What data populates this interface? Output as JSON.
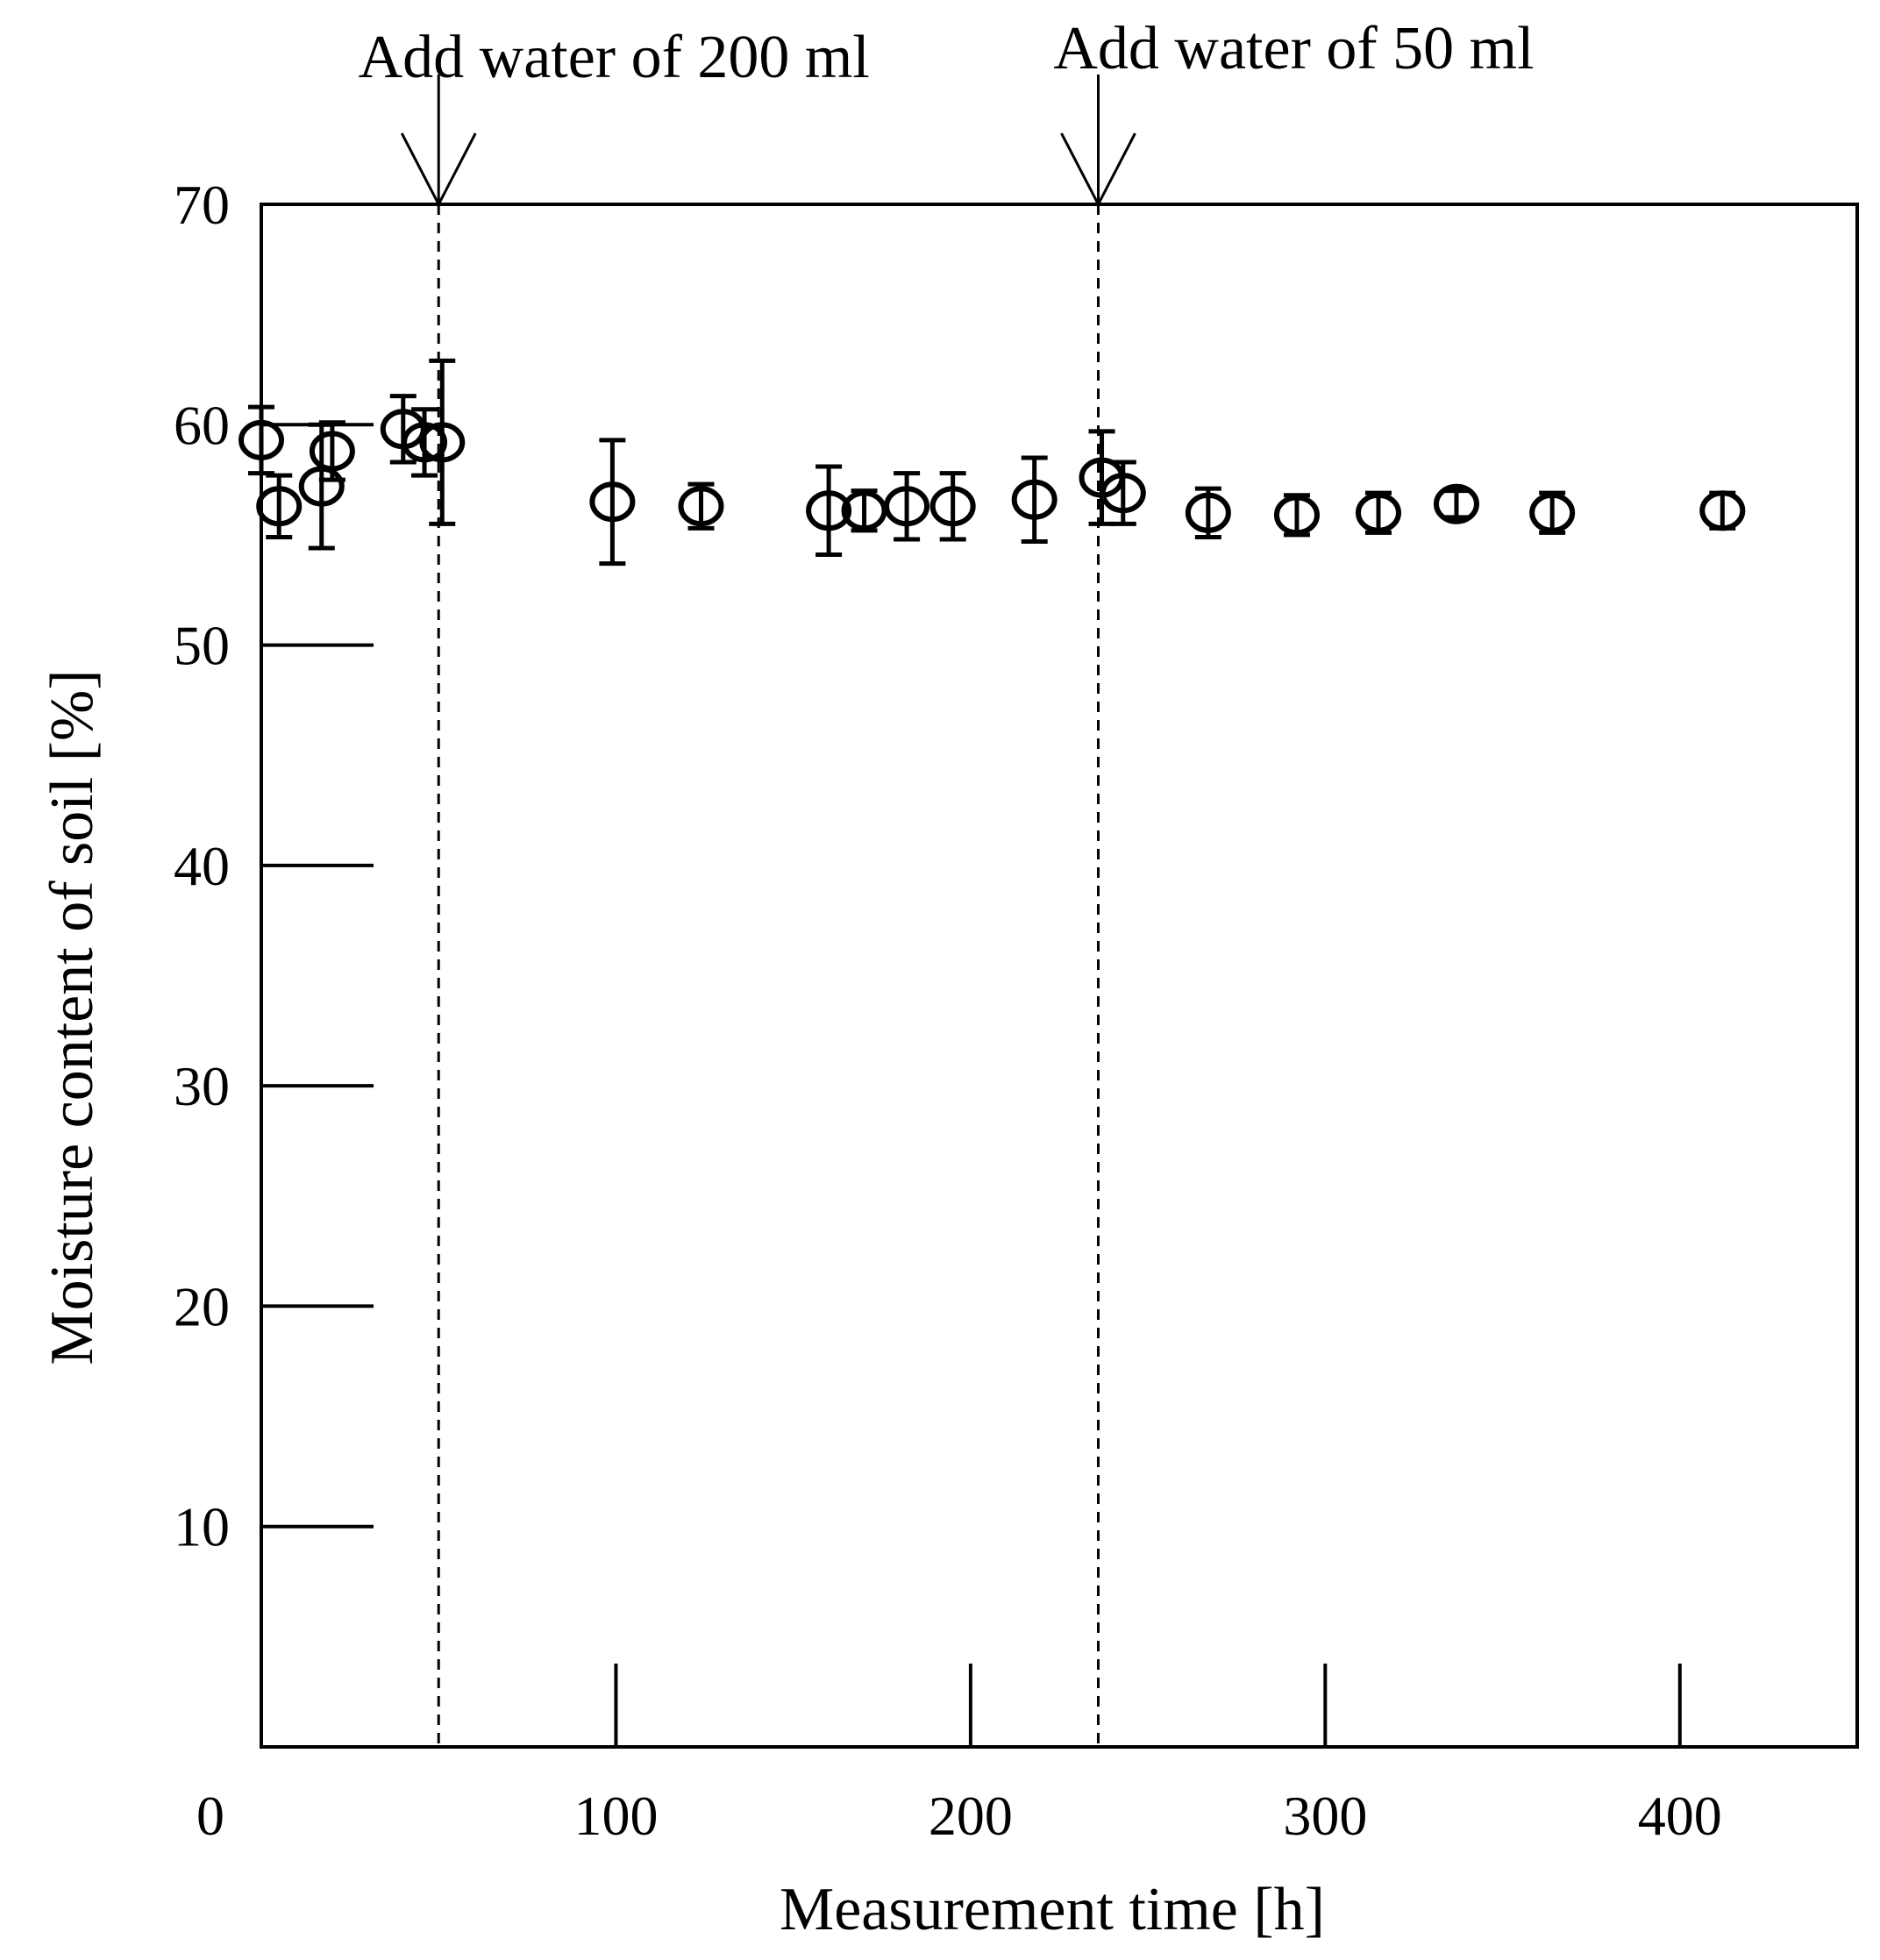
{
  "chart_data": {
    "type": "scatter",
    "title": "",
    "xlabel": "Measurement time [h]",
    "ylabel": "Moisture content of soil [%]",
    "xlim": [
      0,
      450
    ],
    "ylim": [
      0,
      70
    ],
    "x_ticks": [
      0,
      100,
      200,
      300,
      400
    ],
    "y_ticks": [
      10,
      20,
      30,
      40,
      50,
      60,
      70
    ],
    "x_tick_labels": [
      "0",
      "100",
      "200",
      "300",
      "400"
    ],
    "y_tick_labels": [
      "10",
      "20",
      "30",
      "40",
      "50",
      "60",
      "70"
    ],
    "grid": false,
    "marker": "open-circle",
    "points": [
      {
        "x": 0,
        "y": 59.3,
        "err": 1.5
      },
      {
        "x": 5,
        "y": 56.3,
        "err": 1.4
      },
      {
        "x": 17,
        "y": 57.2,
        "err": 2.8
      },
      {
        "x": 20,
        "y": 58.8,
        "err": 1.3
      },
      {
        "x": 40,
        "y": 59.8,
        "err": 1.5
      },
      {
        "x": 46,
        "y": 59.2,
        "err": 1.5
      },
      {
        "x": 51,
        "y": 59.2,
        "err": 3.7
      },
      {
        "x": 99,
        "y": 56.5,
        "err": 2.8
      },
      {
        "x": 124,
        "y": 56.3,
        "err": 1.0
      },
      {
        "x": 160,
        "y": 56.1,
        "err": 2.0
      },
      {
        "x": 170,
        "y": 56.1,
        "err": 0.9
      },
      {
        "x": 182,
        "y": 56.3,
        "err": 1.5
      },
      {
        "x": 195,
        "y": 56.3,
        "err": 1.5
      },
      {
        "x": 218,
        "y": 56.6,
        "err": 1.9
      },
      {
        "x": 237,
        "y": 57.6,
        "err": 2.1
      },
      {
        "x": 243,
        "y": 56.9,
        "err": 1.4
      },
      {
        "x": 267,
        "y": 56.0,
        "err": 1.1
      },
      {
        "x": 292,
        "y": 55.9,
        "err": 0.9
      },
      {
        "x": 315,
        "y": 56.0,
        "err": 0.9
      },
      {
        "x": 337,
        "y": 56.4,
        "err": 0.6
      },
      {
        "x": 364,
        "y": 56.0,
        "err": 0.9
      },
      {
        "x": 412,
        "y": 56.1,
        "err": 0.8
      }
    ],
    "annotations": [
      {
        "text": "Add water of 200 ml",
        "x": 50
      },
      {
        "text": "Add water of 50 ml",
        "x": 236
      }
    ]
  }
}
